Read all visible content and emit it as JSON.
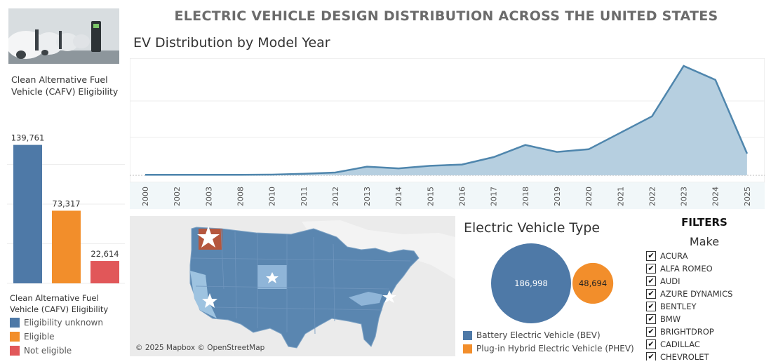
{
  "header": {
    "title": "ELECTRIC VEHICLE DESIGN DISTRIBUTION ACROSS THE UNITED STATES"
  },
  "cafv": {
    "title": "Clean Alternative Fuel Vehicle (CAFV) Eligibility",
    "legend_title": "Clean Alternative Fuel Vehicle (CAFV) Eligibility",
    "legend": [
      {
        "label": "Eligibility unknown",
        "color": "#4e79a7"
      },
      {
        "label": "Eligible",
        "color": "#f28e2b"
      },
      {
        "label": "Not eligible",
        "color": "#e15759"
      }
    ]
  },
  "ev_year": {
    "title": "EV Distribution by Model Year"
  },
  "ev_type": {
    "title": "Electric Vehicle Type",
    "legend": [
      {
        "label": "Battery Electric Vehicle (BEV)",
        "color": "#4e79a7"
      },
      {
        "label": "Plug-in Hybrid Electric Vehicle (PHEV)",
        "color": "#f28e2b"
      }
    ]
  },
  "map": {
    "credit": "© 2025 Mapbox © OpenStreetMap"
  },
  "filters": {
    "title": "FILTERS",
    "make_title": "Make",
    "makes": [
      "ACURA",
      "ALFA ROMEO",
      "AUDI",
      "AZURE DYNAMICS",
      "BENTLEY",
      "BMW",
      "BRIGHTDROP",
      "CADILLAC",
      "CHEVROLET"
    ],
    "check_glyph": "✔"
  },
  "chart_data": [
    {
      "type": "bar",
      "categories": [
        "Eligibility unknown",
        "Eligible",
        "Not eligible"
      ],
      "values": [
        139761,
        73317,
        22614
      ],
      "labels": [
        "139,761",
        "73,317",
        "22,614"
      ],
      "colors": [
        "#4e79a7",
        "#f28e2b",
        "#e15759"
      ],
      "ylim": [
        0,
        160000
      ]
    },
    {
      "type": "area",
      "title": "EV Distribution by Model Year",
      "x": [
        "2000",
        "2002",
        "2003",
        "2008",
        "2010",
        "2011",
        "2012",
        "2013",
        "2014",
        "2015",
        "2016",
        "2017",
        "2018",
        "2019",
        "2020",
        "2021",
        "2022",
        "2023",
        "2024",
        "2025"
      ],
      "values": [
        300,
        300,
        300,
        300,
        400,
        900,
        1600,
        5000,
        4000,
        5500,
        6200,
        10500,
        17500,
        13500,
        15000,
        24500,
        34000,
        63000,
        55000,
        12500
      ],
      "color": "#4e79a7",
      "ylim": [
        0,
        65000
      ]
    },
    {
      "type": "bubble",
      "title": "Electric Vehicle Type",
      "categories": [
        "Battery Electric Vehicle (BEV)",
        "Plug-in Hybrid Electric Vehicle (PHEV)"
      ],
      "values": [
        186998,
        48694
      ],
      "labels": [
        "186,998",
        "48,694"
      ],
      "colors": [
        "#4e79a7",
        "#f28e2b"
      ]
    }
  ]
}
